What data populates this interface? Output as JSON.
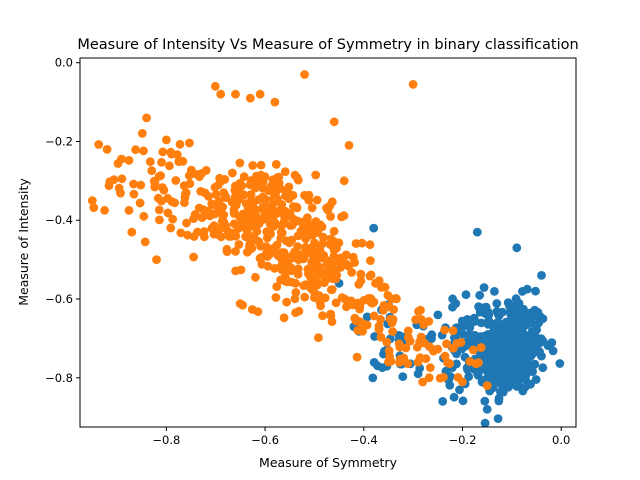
{
  "chart_data": {
    "type": "scatter",
    "title": "Measure of Intensity Vs Measure of Symmetry in binary classification",
    "xlabel": "Measure of Symmetry",
    "ylabel": "Measure of Intensity",
    "xlim": [
      -0.975,
      0.03
    ],
    "ylim": [
      -0.925,
      0.012
    ],
    "xticks": [
      -0.8,
      -0.6,
      -0.4,
      -0.2,
      0.0
    ],
    "yticks": [
      0.0,
      -0.2,
      -0.4,
      -0.6,
      -0.8
    ],
    "xtick_labels": [
      "−0.8",
      "−0.6",
      "−0.4",
      "−0.2",
      "0.0"
    ],
    "ytick_labels": [
      "0.0",
      "−0.2",
      "−0.4",
      "−0.6",
      "−0.8"
    ],
    "grid": false,
    "legend": "none",
    "series": [
      {
        "color": "#1f77b4",
        "clusters": [
          {
            "cx": -0.1,
            "cy": -0.72,
            "sx": 0.035,
            "sy": 0.06,
            "n": 330
          },
          {
            "cx": -0.16,
            "cy": -0.76,
            "sx": 0.035,
            "sy": 0.05,
            "n": 80
          },
          {
            "cx": -0.2,
            "cy": -0.68,
            "sx": 0.03,
            "sy": 0.05,
            "n": 40
          },
          {
            "cx": -0.33,
            "cy": -0.72,
            "sx": 0.05,
            "sy": 0.05,
            "n": 30
          }
        ],
        "points": [
          {
            "x": -0.45,
            "y": -0.56
          },
          {
            "x": -0.38,
            "y": -0.42
          },
          {
            "x": -0.17,
            "y": -0.43
          },
          {
            "x": -0.09,
            "y": -0.47
          },
          {
            "x": -0.04,
            "y": -0.54
          },
          {
            "x": -0.24,
            "y": -0.86
          },
          {
            "x": -0.15,
            "y": -0.88
          },
          {
            "x": -0.29,
            "y": -0.79
          },
          {
            "x": -0.36,
            "y": -0.74
          },
          {
            "x": -0.42,
            "y": -0.67
          }
        ]
      },
      {
        "color": "#ff7f0e",
        "clusters": [
          {
            "cx": -0.62,
            "cy": -0.38,
            "sx": 0.06,
            "sy": 0.06,
            "n": 220
          },
          {
            "cx": -0.52,
            "cy": -0.5,
            "sx": 0.06,
            "sy": 0.06,
            "n": 170
          },
          {
            "cx": -0.8,
            "cy": -0.3,
            "sx": 0.06,
            "sy": 0.07,
            "n": 70
          },
          {
            "cx": -0.4,
            "cy": -0.62,
            "sx": 0.05,
            "sy": 0.05,
            "n": 60
          },
          {
            "cx": -0.3,
            "cy": -0.72,
            "sx": 0.05,
            "sy": 0.05,
            "n": 40
          },
          {
            "cx": -0.2,
            "cy": -0.76,
            "sx": 0.04,
            "sy": 0.04,
            "n": 15
          }
        ],
        "points": [
          {
            "x": -0.52,
            "y": -0.03
          },
          {
            "x": -0.3,
            "y": -0.055
          },
          {
            "x": -0.69,
            "y": -0.08
          },
          {
            "x": -0.66,
            "y": -0.08
          },
          {
            "x": -0.61,
            "y": -0.08
          },
          {
            "x": -0.58,
            "y": -0.1
          },
          {
            "x": -0.63,
            "y": -0.09
          },
          {
            "x": -0.84,
            "y": -0.14
          },
          {
            "x": -0.92,
            "y": -0.22
          },
          {
            "x": -0.95,
            "y": -0.35
          },
          {
            "x": -0.87,
            "y": -0.43
          },
          {
            "x": -0.82,
            "y": -0.5
          },
          {
            "x": -0.46,
            "y": -0.15
          },
          {
            "x": -0.43,
            "y": -0.21
          },
          {
            "x": -0.15,
            "y": -0.82
          },
          {
            "x": -0.35,
            "y": -0.76
          }
        ]
      }
    ]
  }
}
